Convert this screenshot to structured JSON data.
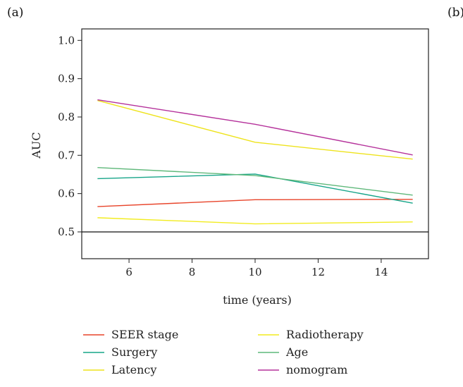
{
  "panel_labels": {
    "left": "(a)",
    "right": "(b)"
  },
  "chart_data": {
    "type": "line",
    "xlabel": "time (years)",
    "ylabel": "AUC",
    "xlim": [
      4.5,
      15.5
    ],
    "ylim": [
      0.43,
      1.03
    ],
    "xticks": [
      6,
      8,
      10,
      12,
      14
    ],
    "yticks": [
      0.5,
      0.6,
      0.7,
      0.8,
      0.9,
      1.0
    ],
    "ytick_labels": [
      "0.5",
      "0.6",
      "0.7",
      "0.8",
      "0.9",
      "1.0"
    ],
    "x": [
      5,
      10,
      15
    ],
    "reference_line_y": 0.5,
    "grid": false,
    "legend_position": "bottom",
    "series": [
      {
        "name": "SEER stage",
        "color": "#e8442a",
        "values": [
          0.566,
          0.584,
          0.585
        ]
      },
      {
        "name": "Radiotherapy",
        "color": "#f2ec1f",
        "values": [
          0.537,
          0.521,
          0.526
        ]
      },
      {
        "name": "Surgery",
        "color": "#17a589",
        "values": [
          0.639,
          0.651,
          0.575
        ]
      },
      {
        "name": "Age",
        "color": "#5fb87a",
        "values": [
          0.668,
          0.647,
          0.596
        ]
      },
      {
        "name": "Latency",
        "color": "#eee31c",
        "values": [
          0.843,
          0.734,
          0.69
        ]
      },
      {
        "name": "nomogram",
        "color": "#b5329b",
        "values": [
          0.845,
          0.781,
          0.701
        ]
      }
    ]
  }
}
